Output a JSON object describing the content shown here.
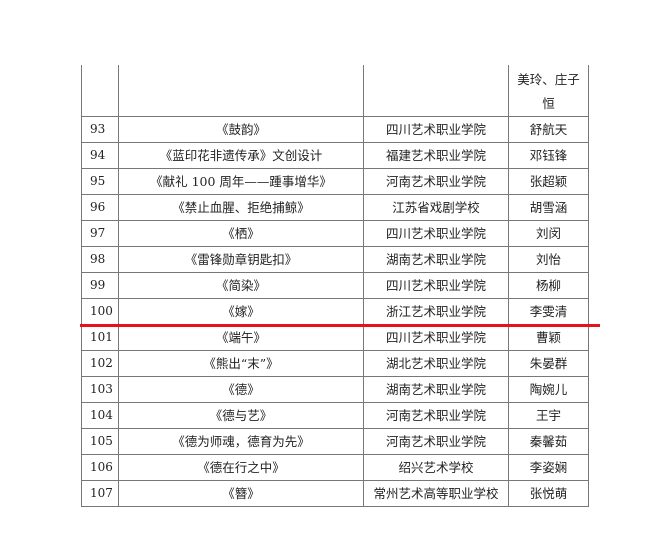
{
  "continuation_row": {
    "name_line1": "美玲、庄子",
    "name_line2": "恒"
  },
  "rows": [
    {
      "num": "93",
      "title": "《鼓韵》",
      "school": "四川艺术职业学院",
      "name": "舒航天"
    },
    {
      "num": "94",
      "title": "《蓝印花非遗传承》文创设计",
      "school": "福建艺术职业学院",
      "name": "邓钰锋"
    },
    {
      "num": "95",
      "title": "《献礼 100 周年——踵事增华》",
      "school": "河南艺术职业学院",
      "name": "张超颖"
    },
    {
      "num": "96",
      "title": "《禁止血腥、拒绝捕鲸》",
      "school": "江苏省戏剧学校",
      "name": "胡雪涵"
    },
    {
      "num": "97",
      "title": "《栖》",
      "school": "四川艺术职业学院",
      "name": "刘闵"
    },
    {
      "num": "98",
      "title": "《雷锋勋章钥匙扣》",
      "school": "湖南艺术职业学院",
      "name": "刘怡"
    },
    {
      "num": "99",
      "title": "《简染》",
      "school": "四川艺术职业学院",
      "name": "杨柳"
    },
    {
      "num": "100",
      "title": "《嫁》",
      "school": "浙江艺术职业学院",
      "name": "李雯清"
    },
    {
      "num": "101",
      "title": "《端午》",
      "school": "四川艺术职业学院",
      "name": "曹颖"
    },
    {
      "num": "102",
      "title": "《熊出“末”》",
      "school": "湖北艺术职业学院",
      "name": "朱晏群"
    },
    {
      "num": "103",
      "title": "《德》",
      "school": "湖南艺术职业学院",
      "name": "陶婉儿"
    },
    {
      "num": "104",
      "title": "《德与艺》",
      "school": "河南艺术职业学院",
      "name": "王宇"
    },
    {
      "num": "105",
      "title": "《德为师魂，德育为先》",
      "school": "河南艺术职业学院",
      "name": "秦馨茹"
    },
    {
      "num": "106",
      "title": "《德在行之中》",
      "school": "绍兴艺术学校",
      "name": "李姿娴"
    },
    {
      "num": "107",
      "title": "《簪》",
      "school": "常州艺术高等职业学校",
      "name": "张悦萌"
    }
  ],
  "colors": {
    "highlight_line": "#e8101a",
    "border": "#777777"
  }
}
